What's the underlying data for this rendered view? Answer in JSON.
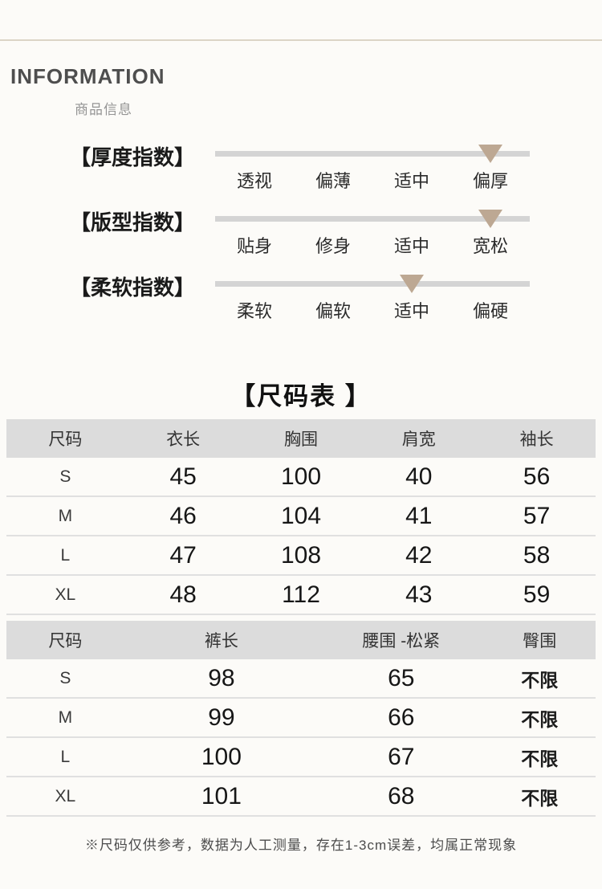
{
  "header": {
    "title": "INFORMATION",
    "subtitle": "商品信息"
  },
  "indexes": [
    {
      "label": "【厚度指数】",
      "options": [
        "透视",
        "偏薄",
        "适中",
        "偏厚"
      ],
      "selected_index": 3,
      "selected_label": "偏厚"
    },
    {
      "label": "【版型指数】",
      "options": [
        "贴身",
        "修身",
        "适中",
        "宽松"
      ],
      "selected_index": 3,
      "selected_label": "宽松"
    },
    {
      "label": "【柔软指数】",
      "options": [
        "柔软",
        "偏软",
        "适中",
        "偏硬"
      ],
      "selected_index": 2,
      "selected_label": "适中"
    }
  ],
  "size_section": {
    "title": "【尺码表 】",
    "table1": {
      "headers": [
        "尺码",
        "衣长",
        "胸围",
        "肩宽",
        "袖长"
      ],
      "rows": [
        [
          "S",
          "45",
          "100",
          "40",
          "56"
        ],
        [
          "M",
          "46",
          "104",
          "41",
          "57"
        ],
        [
          "L",
          "47",
          "108",
          "42",
          "58"
        ],
        [
          "XL",
          "48",
          "112",
          "43",
          "59"
        ]
      ]
    },
    "table2": {
      "headers": [
        "尺码",
        "裤长",
        "腰围 -松紧",
        "臀围"
      ],
      "rows": [
        [
          "S",
          "98",
          "65",
          "不限"
        ],
        [
          "M",
          "99",
          "66",
          "不限"
        ],
        [
          "L",
          "100",
          "67",
          "不限"
        ],
        [
          "XL",
          "101",
          "68",
          "不限"
        ]
      ]
    },
    "note": "※尺码仅供参考，数据为人工测量，存在1-3cm误差，均属正常现象"
  },
  "colors": {
    "accent_marker": "#bda893",
    "scale_bar": "#d4d4d4",
    "table_header_band": "#dcdcdc",
    "top_divider": "#dcd5c6"
  }
}
